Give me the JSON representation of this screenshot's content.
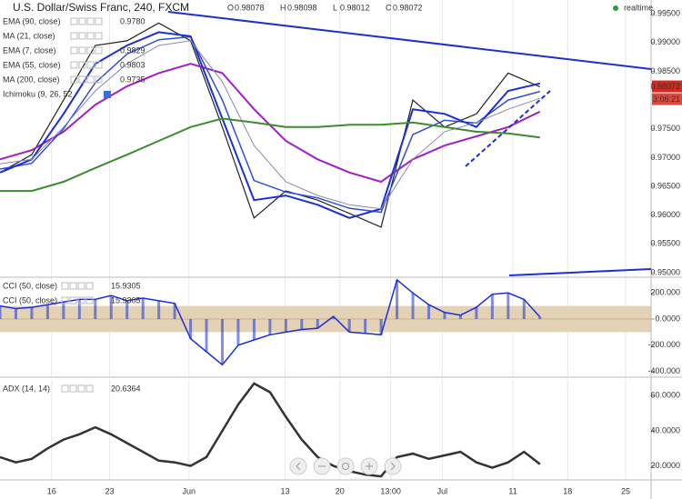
{
  "chart_data": [
    {
      "type": "line",
      "title": "U.S. Dollar/Swiss Franc, 240, FXCM",
      "ohlc": [
        {
          "key": "O",
          "value": "0.98078"
        },
        {
          "key": "H",
          "value": "0.98098"
        },
        {
          "key": "L",
          "value": "0.98012"
        },
        {
          "key": "C",
          "value": "0.98072"
        }
      ],
      "status": "realtime",
      "price_tag": "0.98072",
      "timer": "3:06:21",
      "x": [
        0,
        4,
        8,
        12,
        16,
        20,
        24,
        28,
        32,
        36,
        40,
        44,
        48,
        52,
        56,
        60,
        64,
        68
      ],
      "values": [
        0.9674,
        0.9705,
        0.98,
        0.9895,
        0.9903,
        0.9934,
        0.9903,
        0.9753,
        0.9595,
        0.9642,
        0.9626,
        0.9603,
        0.9579,
        0.98,
        0.9753,
        0.9776,
        0.9847,
        0.9823
      ],
      "color": "#222222",
      "series": [
        {
          "name": "EMA (90, close)",
          "value_label": "0.9780",
          "color": "#a020c8",
          "width": 2,
          "values": [
            0.9697,
            0.9713,
            0.9745,
            0.9792,
            0.9824,
            0.9847,
            0.9863,
            0.9847,
            0.9784,
            0.9729,
            0.9697,
            0.9674,
            0.9658,
            0.9697,
            0.9721,
            0.9737,
            0.9753,
            0.978
          ]
        },
        {
          "name": "MA (21, close)",
          "color": "#2f4fd8",
          "width": 1.5,
          "values": [
            0.968,
            0.969,
            0.975,
            0.983,
            0.988,
            0.9905,
            0.991,
            0.98,
            0.966,
            0.964,
            0.963,
            0.9612,
            0.9605,
            0.974,
            0.9765,
            0.976,
            0.98,
            0.9815
          ]
        },
        {
          "name": "EMA (7, close)",
          "value_label": "0.9829",
          "color": "#1a2fd6",
          "width": 2,
          "values": [
            0.9674,
            0.9697,
            0.9776,
            0.9863,
            0.9895,
            0.9918,
            0.9911,
            0.9768,
            0.9626,
            0.9634,
            0.9618,
            0.9595,
            0.9611,
            0.9784,
            0.9776,
            0.9753,
            0.9816,
            0.9829
          ]
        },
        {
          "name": "EMA (55, close)",
          "value_label": "0.9803",
          "color": "#8a8ab0",
          "width": 1,
          "values": [
            0.9689,
            0.9697,
            0.9753,
            0.9816,
            0.9863,
            0.9895,
            0.9903,
            0.9832,
            0.9721,
            0.9658,
            0.9634,
            0.9618,
            0.9611,
            0.9697,
            0.9745,
            0.9761,
            0.9784,
            0.9803
          ]
        },
        {
          "name": "MA (200, close)",
          "value_label": "0.9735",
          "color": "#3c8c2c",
          "width": 2,
          "values": [
            0.9642,
            0.9642,
            0.9658,
            0.9682,
            0.9705,
            0.9729,
            0.9753,
            0.9768,
            0.9761,
            0.9753,
            0.9753,
            0.9757,
            0.9757,
            0.9761,
            0.9753,
            0.9745,
            0.9742,
            0.9735
          ]
        }
      ],
      "ichimoku_label": "Ichimoku (9, 26, 52",
      "xlim": [
        0,
        82
      ],
      "ylim": [
        0.9492,
        0.9974
      ],
      "yticks": [
        {
          "value": 0.995,
          "label": "0.99500"
        },
        {
          "value": 0.99,
          "label": "0.99000"
        },
        {
          "value": 0.985,
          "label": "0.98500"
        },
        {
          "value": 0.975,
          "label": "0.97500"
        },
        {
          "value": 0.97,
          "label": "0.97000"
        },
        {
          "value": 0.965,
          "label": "0.96500"
        },
        {
          "value": 0.96,
          "label": "0.96000"
        },
        {
          "value": 0.955,
          "label": "0.95500"
        },
        {
          "value": 0.95,
          "label": "0.95000"
        }
      ]
    },
    {
      "type": "bar",
      "x": [
        0,
        2,
        4,
        6,
        8,
        10,
        12,
        14,
        16,
        18,
        20,
        22,
        24,
        26,
        28,
        30,
        32,
        34,
        36,
        38,
        40,
        42,
        44,
        46,
        48,
        50,
        52,
        54,
        56,
        58,
        60,
        62,
        64,
        66,
        68
      ],
      "series": [
        {
          "name": "CCI (50, close)",
          "value_label": "15.9305",
          "color": "#1a2fd6",
          "values": [
            100,
            80,
            90,
            110,
            130,
            150,
            150,
            180,
            140,
            160,
            140,
            120,
            -150,
            -250,
            -350,
            -200,
            -160,
            -120,
            -100,
            -80,
            -70,
            20,
            -100,
            -110,
            -120,
            300,
            200,
            110,
            50,
            30,
            90,
            190,
            200,
            150,
            16
          ]
        }
      ],
      "legend_repeat": {
        "name": "CCI (50, close)",
        "value_label": "15.9305"
      },
      "band": [
        -100,
        100
      ],
      "xlim": [
        0,
        82
      ],
      "ylim": [
        -445,
        320
      ],
      "yticks": [
        {
          "value": 200,
          "label": "200.000"
        },
        {
          "value": 0,
          "label": "0.0000"
        },
        {
          "value": -200,
          "label": "-200.000"
        },
        {
          "value": -400,
          "label": "-400.000"
        }
      ]
    },
    {
      "type": "line",
      "x": [
        0,
        2,
        4,
        6,
        8,
        10,
        12,
        14,
        16,
        18,
        20,
        22,
        24,
        26,
        28,
        30,
        32,
        34,
        36,
        38,
        40,
        42,
        44,
        46,
        48,
        50,
        52,
        54,
        56,
        58,
        60,
        62,
        64,
        66,
        68
      ],
      "series": [
        {
          "name": "ADX (14, 14)",
          "value_label": "20.6364",
          "color": "#333333",
          "width": 2.5,
          "values": [
            25,
            22,
            24,
            30,
            35,
            38,
            42,
            38,
            33,
            28,
            23,
            22,
            20,
            25,
            40,
            55,
            67,
            62,
            48,
            35,
            25,
            20,
            17,
            15,
            14,
            25,
            27,
            24,
            26,
            28,
            22,
            19,
            22,
            28,
            21
          ]
        }
      ],
      "xlim": [
        0,
        82
      ],
      "ylim": [
        12,
        69
      ],
      "yticks": [
        {
          "value": 60,
          "label": "60.0000"
        },
        {
          "value": 40,
          "label": "40.0000"
        },
        {
          "value": 20,
          "label": "20.0000"
        }
      ],
      "xticks": [
        {
          "value": 6.5,
          "label": "16"
        },
        {
          "value": 13.8,
          "label": "23"
        },
        {
          "value": 23.8,
          "label": "Jun"
        },
        {
          "value": 35.9,
          "label": "13"
        },
        {
          "value": 42.8,
          "label": "20"
        },
        {
          "value": 49.2,
          "label": "13:00"
        },
        {
          "value": 55.7,
          "label": "Jul"
        },
        {
          "value": 64.6,
          "label": "11"
        },
        {
          "value": 71.5,
          "label": "18"
        },
        {
          "value": 78.8,
          "label": "25"
        }
      ],
      "grid": true
    }
  ]
}
